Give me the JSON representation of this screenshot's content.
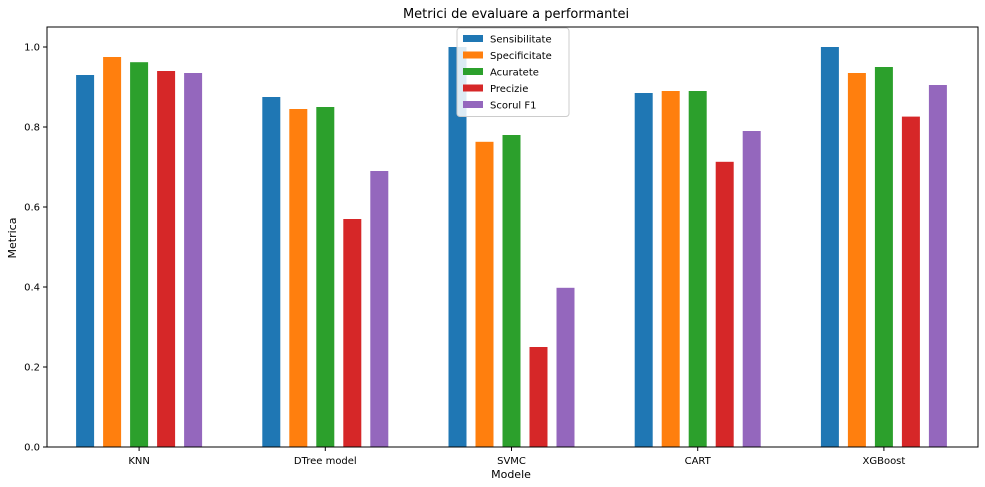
{
  "chart_data": {
    "type": "bar",
    "title": "Metrici de evaluare a performantei",
    "xlabel": "Modele",
    "ylabel": "Metrica",
    "categories": [
      "KNN",
      "DTree model",
      "SVMC",
      "CART",
      "XGBoost"
    ],
    "ylim": [
      0,
      1.05
    ],
    "yticks": [
      0.0,
      0.2,
      0.4,
      0.6,
      0.8,
      1.0
    ],
    "ytick_labels": [
      "0.0",
      "0.2",
      "0.4",
      "0.6",
      "0.8",
      "1.0"
    ],
    "grid": false,
    "legend_position": "top-center",
    "series": [
      {
        "name": "Sensibilitate",
        "color": "#1f77b4",
        "values": [
          0.93,
          0.875,
          1.0,
          0.885,
          1.0
        ]
      },
      {
        "name": "Specificitate",
        "color": "#ff7f0e",
        "values": [
          0.975,
          0.845,
          0.763,
          0.89,
          0.935
        ]
      },
      {
        "name": "Acuratete",
        "color": "#2ca02c",
        "values": [
          0.962,
          0.85,
          0.78,
          0.89,
          0.95
        ]
      },
      {
        "name": "Precizie",
        "color": "#d62728",
        "values": [
          0.94,
          0.57,
          0.25,
          0.713,
          0.826
        ]
      },
      {
        "name": "Scorul F1",
        "color": "#9467bd",
        "values": [
          0.935,
          0.69,
          0.398,
          0.79,
          0.905
        ]
      }
    ]
  }
}
